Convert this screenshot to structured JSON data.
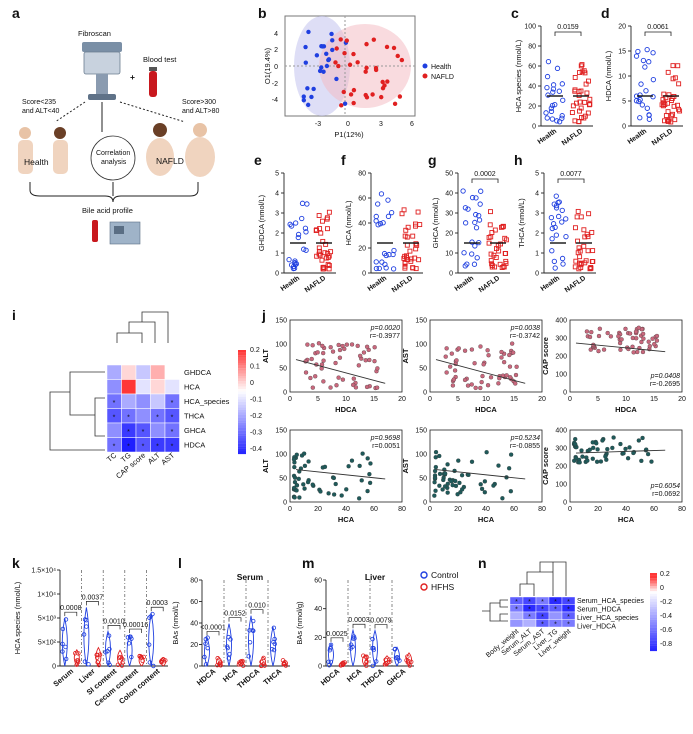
{
  "figure": {
    "panels": {
      "a": {
        "label": "a",
        "fibroscan": "Fibroscan",
        "blood_test": "Blood test",
        "left_crit_1": "Score<235",
        "left_crit_2": "and ALT<40",
        "right_crit_1": "Score>300",
        "right_crit_2": "and ALT>80",
        "health": "Health",
        "nafld": "NAFLD",
        "corr_1": "Correlation",
        "corr_2": "analysis",
        "profile": "Bile acid profile",
        "plus": "+"
      },
      "b": {
        "label": "b",
        "xlabel": "P1(12%)",
        "ylabel": "O1(19.4%)",
        "legend": [
          "Health",
          "NAFLD"
        ],
        "xticks": [
          "-3",
          "0",
          "3",
          "6"
        ],
        "yticks": [
          "4",
          "2",
          "0",
          "-2",
          "-4"
        ]
      },
      "c": {
        "label": "c",
        "ylabel": "HCA species (nmol/L)",
        "p": "0.0159",
        "yticks": [
          "0",
          "20",
          "40",
          "60",
          "80",
          "100"
        ]
      },
      "d": {
        "label": "d",
        "ylabel": "HDCA (nmol/L)",
        "p": "0.0061",
        "yticks": [
          "0",
          "5",
          "10",
          "15",
          "20"
        ]
      },
      "e": {
        "label": "e",
        "ylabel": "GHDCA (nmol/L)",
        "yticks": [
          "0",
          "1",
          "2",
          "3",
          "4",
          "5"
        ]
      },
      "f": {
        "label": "f",
        "ylabel": "HCA (nmol/L)",
        "yticks": [
          "0",
          "20",
          "40",
          "60",
          "80"
        ]
      },
      "g": {
        "label": "g",
        "ylabel": "GHCA (nmol/L)",
        "p": "0.0002",
        "yticks": [
          "0",
          "10",
          "20",
          "30",
          "40",
          "50"
        ]
      },
      "h": {
        "label": "h",
        "ylabel": "THCA (nmol/L)",
        "p": "0.0077",
        "yticks": [
          "0",
          "1",
          "2",
          "3",
          "4",
          "5"
        ]
      },
      "groups": [
        "Health",
        "NAFLD"
      ],
      "i": {
        "label": "i",
        "rows": [
          "GHDCA",
          "HCA",
          "HCA_species",
          "THCA",
          "GHCA",
          "HDCA"
        ],
        "cols": [
          "TC",
          "TG",
          "CAP score",
          "ALT",
          "AST"
        ],
        "scale": [
          "0.2",
          "0.1",
          "0",
          "-0.1",
          "-0.2",
          "-0.3",
          "-0.4"
        ]
      },
      "j": {
        "label": "j",
        "plots": [
          {
            "y": "ALT",
            "x": "HDCA",
            "p": "p=0.0020",
            "r": "r=-0.3977",
            "xt": [
              "0",
              "5",
              "10",
              "15",
              "20"
            ],
            "yt": [
              "0",
              "50",
              "100",
              "150"
            ]
          },
          {
            "y": "AST",
            "x": "HDCA",
            "p": "p=0.0038",
            "r": "r=-0.3742",
            "xt": [
              "0",
              "5",
              "10",
              "15",
              "20"
            ],
            "yt": [
              "0",
              "50",
              "100",
              "150"
            ]
          },
          {
            "y": "CAP score",
            "x": "HDCA",
            "p": "p=0.0408",
            "r": "r=-0.2695",
            "xt": [
              "0",
              "5",
              "10",
              "15",
              "20"
            ],
            "yt": [
              "0",
              "100",
              "200",
              "300",
              "400"
            ]
          },
          {
            "y": "ALT",
            "x": "HCA",
            "p": "p=0.9698",
            "r": "r=0.0051",
            "xt": [
              "0",
              "20",
              "40",
              "60",
              "80"
            ],
            "yt": [
              "0",
              "50",
              "100",
              "150"
            ]
          },
          {
            "y": "AST",
            "x": "HCA",
            "p": "p=0.5234",
            "r": "r=-0.0855",
            "xt": [
              "0",
              "20",
              "40",
              "60",
              "80"
            ],
            "yt": [
              "0",
              "50",
              "100",
              "150"
            ]
          },
          {
            "y": "CAP score",
            "x": "HCA",
            "p": "p=0.6054",
            "r": "r=0.0692",
            "xt": [
              "0",
              "20",
              "40",
              "60",
              "80"
            ],
            "yt": [
              "0",
              "100",
              "200",
              "300",
              "400"
            ]
          }
        ]
      },
      "k": {
        "label": "k",
        "ylabel": "HCA species (nmol/L)",
        "yticks": [
          "1.5×10⁴",
          "1×10⁴",
          "5×10³",
          "5×10²",
          "0"
        ],
        "cats": [
          "Serum",
          "Liver",
          "SI content",
          "Cecum content",
          "Colon content"
        ],
        "pvals": [
          "0.0008",
          "0.0037",
          "0.0010",
          "0.00016",
          "0.0003"
        ]
      },
      "l": {
        "label": "l",
        "title": "Serum",
        "ylabel": "BAs (nmol/L)",
        "yticks": [
          "0",
          "20",
          "40",
          "60",
          "80"
        ],
        "cats": [
          "HDCA",
          "HCA",
          "THDCA",
          "THCA"
        ],
        "pvals": [
          "<0.0001",
          "0.0152",
          "0.010"
        ]
      },
      "m": {
        "label": "m",
        "title": "Liver",
        "ylabel": "BAs (nmol/g)",
        "yticks": [
          "0",
          "20",
          "40",
          "60"
        ],
        "cats": [
          "HDCA",
          "HCA",
          "THDCA",
          "GHCA"
        ],
        "pvals": [
          "0.0025",
          "0.0003",
          "0.0079"
        ],
        "legend": [
          "Control",
          "HFHS"
        ]
      },
      "n": {
        "label": "n",
        "rows": [
          "Serum_HCA_species",
          "Serum_HDCA",
          "Liver_HCA_species",
          "Liver_HDCA"
        ],
        "cols": [
          "Body_weight",
          "Serum_ALT",
          "Serum_AST",
          "Liver_TG",
          "Liver_weight"
        ],
        "scale": [
          "0.2",
          "0",
          "-0.2",
          "-0.4",
          "-0.6",
          "-0.8"
        ]
      }
    }
  },
  "colors": {
    "blue": "#1f3fe0",
    "red": "#e02020",
    "pink": "#f3b7c0",
    "lav": "#c8c8f0",
    "dot_pink": "#c9687d",
    "dot_teal": "#1f5a5a"
  }
}
